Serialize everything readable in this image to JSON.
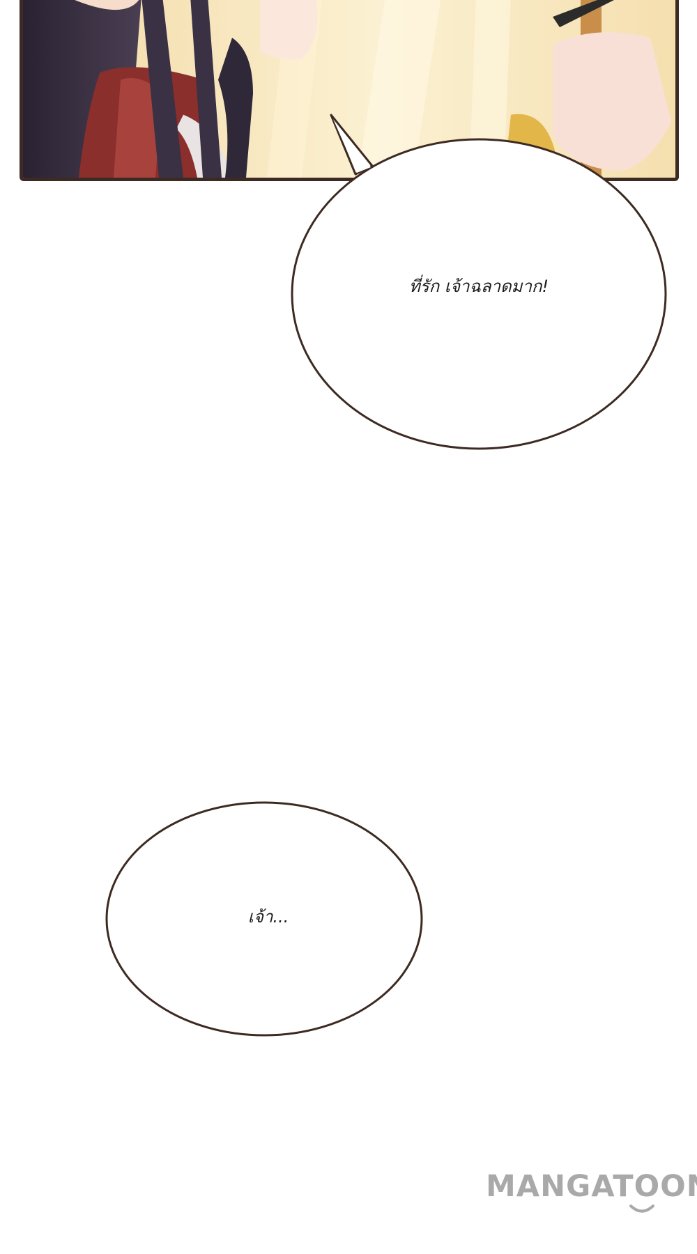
{
  "bubbles": [
    {
      "text": "ที่รัก เจ้าฉลาดมาก!"
    },
    {
      "text": "เจ้า..."
    }
  ],
  "watermark": {
    "text": "MANGATOON"
  },
  "colors": {
    "panel_border": "#3d2a22",
    "bubble_border": "#3d2a22",
    "background": "#ffffff",
    "watermark": "#a9a9a9"
  }
}
